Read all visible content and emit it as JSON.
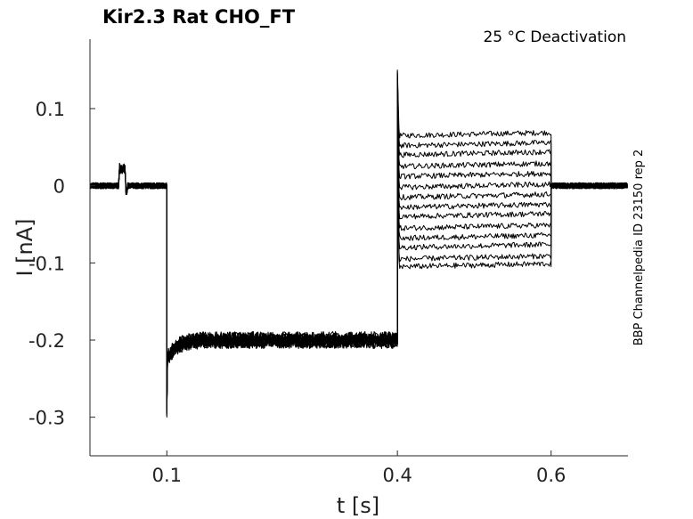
{
  "chart_data": {
    "type": "line",
    "title": "Kir2.3  Rat  CHO_FT",
    "annotation": "25 °C  Deactivation",
    "side_label": "BBP Channelpedia ID 23150 rep 2",
    "xlabel": "t [s]",
    "ylabel": "I [nA]",
    "xlim": [
      0.0,
      0.7
    ],
    "ylim": [
      -0.35,
      0.19
    ],
    "x_ticks": [
      0.1,
      0.4,
      0.6
    ],
    "x_tick_labels": [
      "0.1",
      "0.4",
      "0.6"
    ],
    "y_ticks": [
      0.1,
      0,
      -0.1,
      -0.2,
      -0.3
    ],
    "y_tick_labels": [
      "0.1",
      "0",
      "-0.1",
      "-0.2",
      "-0.3"
    ],
    "grid": false,
    "line_color": "#000000",
    "protocol": {
      "baseline_current": 0.0,
      "hold_step_current": -0.2,
      "hold_step_start": 0.1,
      "hold_step_end": 0.4,
      "test_step_end": 0.6,
      "test_step_currents": [
        0.065,
        0.052,
        0.04,
        0.025,
        0.012,
        -0.002,
        -0.015,
        -0.028,
        -0.04,
        -0.055,
        -0.068,
        -0.08,
        -0.095,
        -0.105
      ]
    },
    "series": [
      {
        "x": [
          0.0,
          0.038,
          0.039,
          0.046,
          0.047,
          0.1,
          0.1,
          0.105,
          0.12,
          0.4,
          0.4,
          0.6,
          0.6,
          0.7
        ],
        "y": [
          0.0,
          0.0,
          0.025,
          0.025,
          0.0,
          0.0,
          -0.3,
          -0.22,
          -0.2,
          -0.2,
          0.15,
          0.065,
          0.0,
          0.0
        ]
      }
    ]
  }
}
